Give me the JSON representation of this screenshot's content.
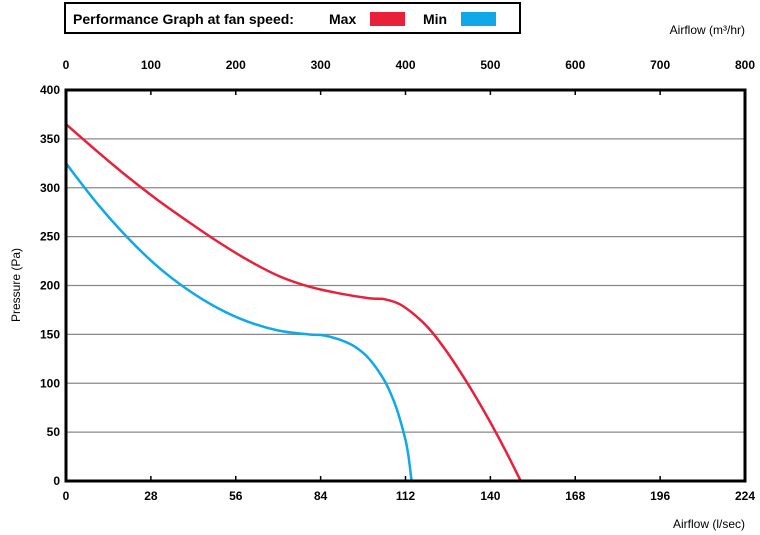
{
  "chart_data": {
    "type": "line",
    "title": "Performance Graph at fan speed:",
    "legend_position": "top-left",
    "grid": true,
    "x_bottom": {
      "label": "Airflow (l/sec)",
      "range": [
        0,
        224
      ],
      "ticks": [
        "0",
        "28",
        "56",
        "84",
        "112",
        "140",
        "168",
        "196",
        "224"
      ]
    },
    "x_top": {
      "label": "Airflow (m³/hr)",
      "range": [
        0,
        800
      ],
      "ticks": [
        "0",
        "100",
        "200",
        "300",
        "400",
        "500",
        "600",
        "700",
        "800"
      ]
    },
    "y": {
      "label": "Pressure (Pa)",
      "range": [
        0,
        400
      ],
      "ticks": [
        "0",
        "50",
        "100",
        "150",
        "200",
        "250",
        "300",
        "350",
        "400"
      ]
    },
    "series": [
      {
        "name": "Max",
        "color": "#e8203a",
        "x": [
          0,
          10,
          20,
          30,
          40,
          50,
          60,
          70,
          80,
          90,
          100,
          105,
          110,
          115,
          120,
          125,
          130,
          135,
          140,
          145,
          150
        ],
        "y": [
          365,
          338,
          312,
          288,
          266,
          245,
          226,
          210,
          199,
          192,
          187,
          186,
          181,
          170,
          155,
          135,
          112,
          87,
          60,
          31,
          0
        ]
      },
      {
        "name": "Min",
        "color": "#0fa8e8",
        "x": [
          0,
          10,
          20,
          30,
          40,
          50,
          60,
          70,
          80,
          85,
          90,
          95,
          100,
          105,
          108,
          110,
          112,
          113,
          114
        ],
        "y": [
          325,
          285,
          250,
          220,
          196,
          177,
          163,
          154,
          150,
          149,
          145,
          138,
          125,
          103,
          83,
          65,
          42,
          25,
          0
        ]
      }
    ]
  }
}
